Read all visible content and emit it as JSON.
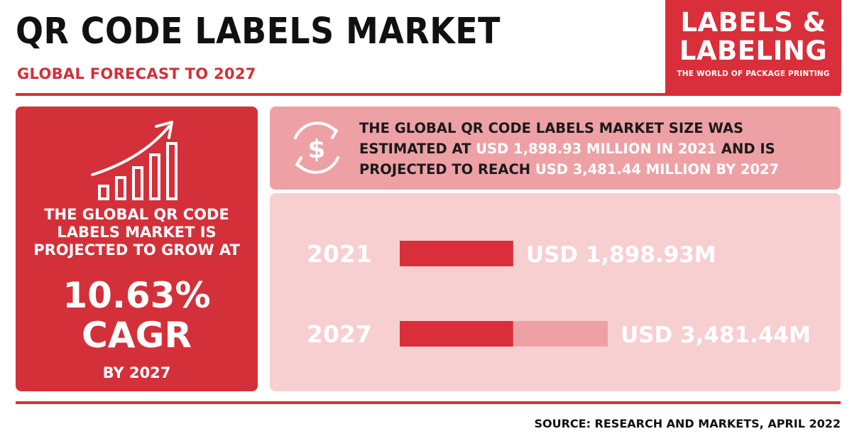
{
  "header": {
    "title": "QR CODE LABELS MARKET",
    "subtitle": "GLOBAL FORECAST TO 2027"
  },
  "logo": {
    "line1": "LABELS &",
    "line2": "LABELING",
    "tagline": "THE WORLD OF PACKAGE PRINTING"
  },
  "growth_card": {
    "icon": "bar-growth-arrow-icon",
    "lead": "THE GLOBAL QR CODE\nLABELS MARKET IS\nPROJECTED TO GROW AT",
    "cagr_value": "10.63%",
    "cagr_label": "CAGR",
    "by_label": "BY 2027"
  },
  "headline": {
    "icon": "dollar-cycle-icon",
    "part1": "THE GLOBAL QR CODE LABELS MARKET SIZE WAS ESTIMATED AT ",
    "highlight1": "USD 1,898.93 MILLION IN 2021",
    "part2": " AND IS PROJECTED TO REACH ",
    "highlight2": "USD 3,481.44 MILLION BY 2027"
  },
  "chart_data": {
    "type": "bar",
    "orientation": "horizontal",
    "categories": [
      "2021",
      "2027"
    ],
    "values": [
      1898.93,
      3481.44
    ],
    "value_labels": [
      "USD 1,898.93M",
      "USD 3,481.44M"
    ],
    "unit": "USD million",
    "title": "",
    "xlabel": "",
    "ylabel": "",
    "grid": false
  },
  "source": "SOURCE: RESEARCH AND MARKETS, APRIL 2022",
  "colors": {
    "accent": "#d92f3a",
    "card_dark": "#d4303a",
    "card_mid": "#eea1a5",
    "card_light": "#f7cfd1",
    "bar_increment": "#eea1a5",
    "text_dark": "#111111",
    "text_light": "#ffffff"
  }
}
